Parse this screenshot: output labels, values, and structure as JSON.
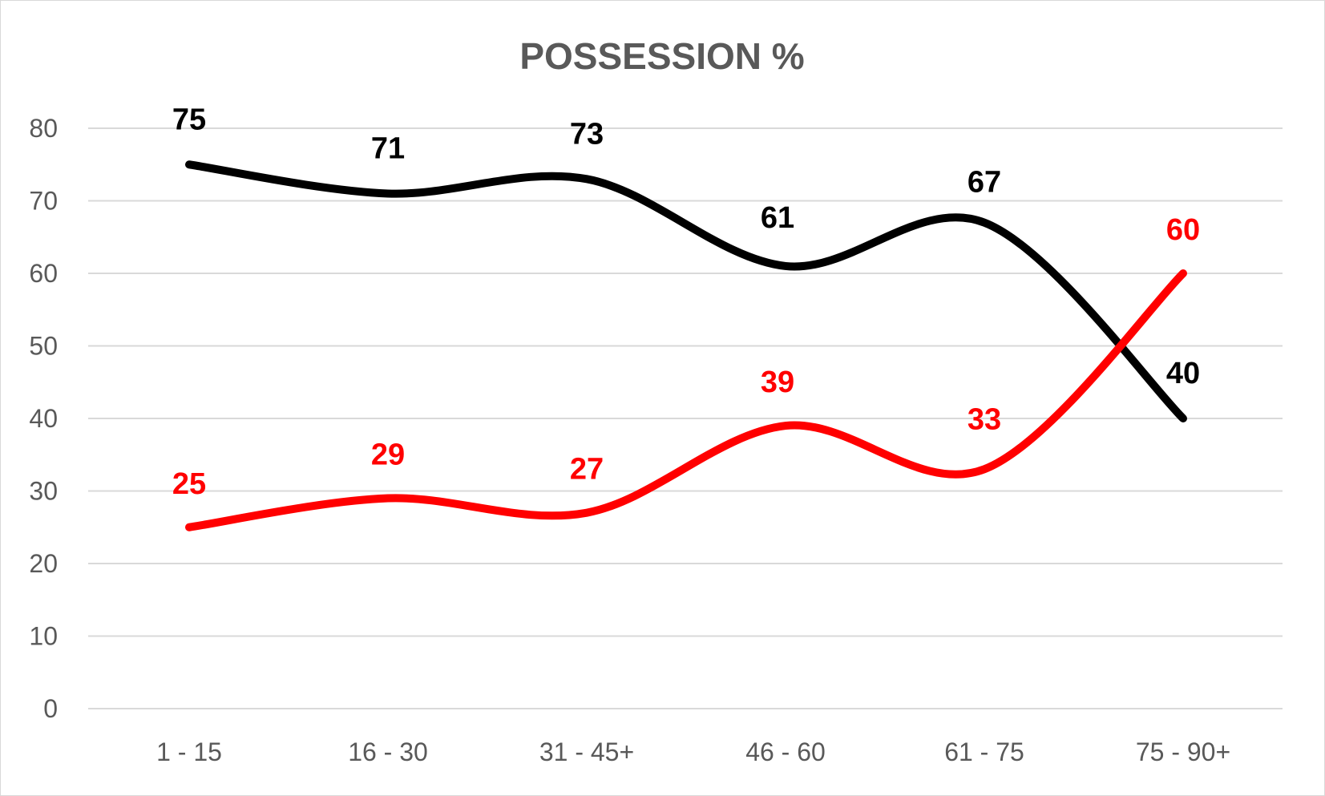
{
  "chart_data": {
    "type": "line",
    "title": "POSSESSION %",
    "xlabel": "",
    "ylabel": "",
    "categories": [
      "1 - 15",
      "16 - 30",
      "31 - 45+",
      "46 - 60",
      "61 - 75",
      "75 - 90+"
    ],
    "ylim": [
      0,
      80
    ],
    "yticks": [
      "0",
      "10",
      "20",
      "30",
      "40",
      "50",
      "60",
      "70",
      "80"
    ],
    "grid": true,
    "legend": "none",
    "smooth": true,
    "series": [
      {
        "values": [
          75,
          71,
          73,
          61,
          67,
          40
        ],
        "labels": [
          "75",
          "71",
          "73",
          "61",
          "67",
          "40"
        ],
        "color": "#000000"
      },
      {
        "values": [
          25,
          29,
          27,
          39,
          33,
          60
        ],
        "labels": [
          "25",
          "29",
          "27",
          "39",
          "33",
          "60"
        ],
        "color": "#ff0000"
      }
    ]
  }
}
